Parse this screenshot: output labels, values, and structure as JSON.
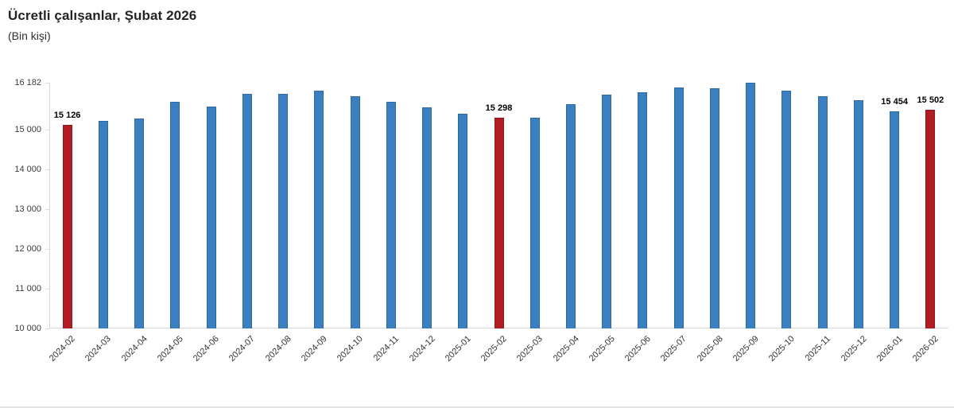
{
  "header": {
    "title": "Ücretli çalışanlar, Şubat 2026",
    "subtitle": "(Bin kişi)"
  },
  "chart_data": {
    "type": "bar",
    "title": "Ücretli çalışanlar, Şubat 2026",
    "subtitle": "(Bin kişi)",
    "ylabel": "Bin kişi",
    "xlabel": "",
    "ylim": [
      10000,
      16182
    ],
    "grid": false,
    "legend": false,
    "categories": [
      "2024-02",
      "2024-03",
      "2024-04",
      "2024-05",
      "2024-06",
      "2024-07",
      "2024-08",
      "2024-09",
      "2024-10",
      "2024-11",
      "2024-12",
      "2025-01",
      "2025-02",
      "2025-03",
      "2025-04",
      "2025-05",
      "2025-06",
      "2025-07",
      "2025-08",
      "2025-09",
      "2025-10",
      "2025-11",
      "2025-12",
      "2026-01",
      "2026-02"
    ],
    "values": [
      15126,
      15220,
      15280,
      15700,
      15590,
      15900,
      15900,
      15990,
      15840,
      15710,
      15570,
      15410,
      15298,
      15310,
      15650,
      15890,
      15940,
      16070,
      16040,
      16182,
      15990,
      15850,
      15740,
      15454,
      15502
    ],
    "highlight_indices": [
      0,
      12,
      24
    ],
    "data_labels": [
      {
        "index": 0,
        "text": "15 126"
      },
      {
        "index": 12,
        "text": "15 298"
      },
      {
        "index": 23,
        "text": "15 454"
      },
      {
        "index": 24,
        "text": "15 502"
      }
    ],
    "yticks": [
      {
        "value": 16182,
        "label": "16 182"
      },
      {
        "value": 15000,
        "label": "15 000"
      },
      {
        "value": 14000,
        "label": "14 000"
      },
      {
        "value": 13000,
        "label": "13 000"
      },
      {
        "value": 12000,
        "label": "12 000"
      },
      {
        "value": 11000,
        "label": "11 000"
      },
      {
        "value": 10000,
        "label": "10 000"
      }
    ],
    "colors": {
      "bar": "#3a80c1",
      "bar_border": "#2e699f",
      "highlight": "#b01e24",
      "highlight_border": "#8c181c",
      "axis_line": "#d9d9d9"
    }
  }
}
